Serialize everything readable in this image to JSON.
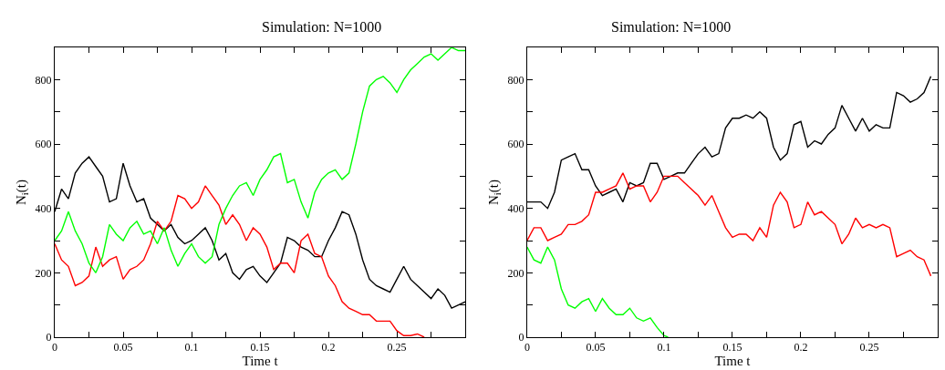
{
  "chart_data": [
    {
      "type": "line",
      "title": "Simulation: N=1000",
      "xlabel": "Time t",
      "ylabel": "N$_{i}$(t)",
      "xlim": [
        0,
        0.3
      ],
      "ylim": [
        0,
        900
      ],
      "xticks": [
        0,
        {
          "value": 0.025,
          "label": null
        },
        0.05,
        {
          "value": 0.075,
          "label": null
        },
        0.1,
        {
          "value": 0.125,
          "label": null
        },
        0.15,
        {
          "value": 0.175,
          "label": null
        },
        0.2,
        {
          "value": 0.225,
          "label": null
        },
        0.25,
        {
          "value": 0.275,
          "label": null
        }
      ],
      "yticks": [
        0,
        {
          "value": 100,
          "label": null
        },
        200,
        {
          "value": 300,
          "label": null
        },
        400,
        {
          "value": 500,
          "label": null
        },
        600,
        {
          "value": 700,
          "label": null
        },
        800
      ],
      "marker": "none",
      "line_style": "solid",
      "x": [
        0,
        0.005,
        0.01,
        0.015,
        0.02,
        0.025,
        0.03,
        0.035,
        0.04,
        0.045,
        0.05,
        0.055,
        0.06,
        0.065,
        0.07,
        0.075,
        0.08,
        0.085,
        0.09,
        0.095,
        0.1,
        0.105,
        0.11,
        0.115,
        0.12,
        0.125,
        0.13,
        0.135,
        0.14,
        0.145,
        0.15,
        0.155,
        0.16,
        0.165,
        0.17,
        0.175,
        0.18,
        0.185,
        0.19,
        0.195,
        0.2,
        0.205,
        0.21,
        0.215,
        0.22,
        0.225,
        0.23,
        0.235,
        0.24,
        0.245,
        0.25,
        0.255,
        0.26,
        0.265,
        0.27,
        0.275,
        0.28,
        0.285,
        0.29,
        0.295,
        0.3
      ],
      "series": [
        {
          "color": "#000000",
          "values": [
            390,
            460,
            430,
            510,
            540,
            560,
            530,
            500,
            420,
            430,
            540,
            470,
            420,
            430,
            370,
            350,
            330,
            350,
            310,
            290,
            300,
            320,
            340,
            300,
            240,
            260,
            200,
            180,
            210,
            220,
            190,
            170,
            200,
            230,
            310,
            300,
            280,
            270,
            250,
            250,
            300,
            340,
            390,
            380,
            320,
            240,
            180,
            160,
            150,
            140,
            180,
            220,
            180,
            160,
            140,
            120,
            150,
            130,
            90,
            100,
            110
          ]
        },
        {
          "color": "#ff0000",
          "x": [
            0,
            0.005,
            0.01,
            0.015,
            0.02,
            0.025,
            0.03,
            0.035,
            0.04,
            0.045,
            0.05,
            0.055,
            0.06,
            0.065,
            0.07,
            0.075,
            0.08,
            0.085,
            0.09,
            0.095,
            0.1,
            0.105,
            0.11,
            0.115,
            0.12,
            0.125,
            0.13,
            0.135,
            0.14,
            0.145,
            0.15,
            0.155,
            0.16,
            0.165,
            0.17,
            0.175,
            0.18,
            0.185,
            0.19,
            0.195,
            0.2,
            0.205,
            0.21,
            0.215,
            0.22,
            0.225,
            0.23,
            0.235,
            0.24,
            0.245,
            0.25,
            0.255,
            0.26,
            0.265,
            0.27
          ],
          "values": [
            290,
            240,
            220,
            160,
            170,
            190,
            280,
            220,
            240,
            250,
            180,
            210,
            220,
            240,
            290,
            360,
            330,
            360,
            440,
            430,
            400,
            420,
            470,
            440,
            410,
            350,
            380,
            350,
            300,
            340,
            320,
            280,
            210,
            230,
            230,
            200,
            300,
            320,
            260,
            250,
            190,
            160,
            110,
            90,
            80,
            70,
            70,
            50,
            50,
            50,
            20,
            5,
            5,
            10,
            0
          ]
        },
        {
          "color": "#00ff00",
          "values": [
            300,
            330,
            390,
            330,
            290,
            230,
            200,
            250,
            350,
            320,
            300,
            340,
            360,
            320,
            330,
            290,
            340,
            270,
            220,
            260,
            290,
            250,
            230,
            250,
            350,
            400,
            440,
            470,
            480,
            440,
            490,
            520,
            560,
            570,
            480,
            490,
            420,
            370,
            450,
            490,
            510,
            520,
            490,
            510,
            600,
            700,
            780,
            800,
            810,
            790,
            760,
            800,
            830,
            850,
            870,
            880,
            860,
            880,
            900,
            890,
            890
          ]
        }
      ]
    },
    {
      "type": "line",
      "title": "Simulation: N=1000",
      "xlabel": "Time t",
      "ylabel": "N$_{i}$(t)",
      "xlim": [
        0,
        0.3
      ],
      "ylim": [
        0,
        900
      ],
      "xticks": [
        0,
        {
          "value": 0.025,
          "label": null
        },
        0.05,
        {
          "value": 0.075,
          "label": null
        },
        0.1,
        {
          "value": 0.125,
          "label": null
        },
        0.15,
        {
          "value": 0.175,
          "label": null
        },
        0.2,
        {
          "value": 0.225,
          "label": null
        },
        0.25,
        {
          "value": 0.275,
          "label": null
        }
      ],
      "yticks": [
        0,
        {
          "value": 100,
          "label": null
        },
        200,
        {
          "value": 300,
          "label": null
        },
        400,
        {
          "value": 500,
          "label": null
        },
        600,
        {
          "value": 700,
          "label": null
        },
        800
      ],
      "marker": "none",
      "line_style": "solid",
      "x": [
        0,
        0.005,
        0.01,
        0.015,
        0.02,
        0.025,
        0.03,
        0.035,
        0.04,
        0.045,
        0.05,
        0.055,
        0.06,
        0.065,
        0.07,
        0.075,
        0.08,
        0.085,
        0.09,
        0.095,
        0.1,
        0.105,
        0.11,
        0.115,
        0.12,
        0.125,
        0.13,
        0.135,
        0.14,
        0.145,
        0.15,
        0.155,
        0.16,
        0.165,
        0.17,
        0.175,
        0.18,
        0.185,
        0.19,
        0.195,
        0.2,
        0.205,
        0.21,
        0.215,
        0.22,
        0.225,
        0.23,
        0.235,
        0.24,
        0.245,
        0.25,
        0.255,
        0.26,
        0.265,
        0.27,
        0.275,
        0.28,
        0.285,
        0.29,
        0.295
      ],
      "series": [
        {
          "color": "#000000",
          "values": [
            420,
            420,
            420,
            400,
            450,
            550,
            560,
            570,
            520,
            520,
            470,
            440,
            450,
            460,
            420,
            480,
            470,
            480,
            540,
            540,
            490,
            500,
            510,
            510,
            540,
            570,
            590,
            560,
            570,
            650,
            680,
            680,
            690,
            680,
            700,
            680,
            590,
            550,
            570,
            660,
            670,
            590,
            610,
            600,
            630,
            650,
            720,
            680,
            640,
            680,
            640,
            660,
            650,
            650,
            760,
            750,
            730,
            740,
            760,
            810
          ]
        },
        {
          "color": "#ff0000",
          "values": [
            300,
            340,
            340,
            300,
            310,
            320,
            350,
            350,
            360,
            380,
            450,
            450,
            460,
            470,
            510,
            460,
            470,
            470,
            420,
            450,
            500,
            500,
            500,
            480,
            460,
            440,
            410,
            440,
            390,
            340,
            310,
            320,
            320,
            300,
            340,
            310,
            410,
            450,
            420,
            340,
            350,
            420,
            380,
            390,
            370,
            350,
            290,
            320,
            370,
            340,
            350,
            340,
            350,
            340,
            250,
            260,
            270,
            250,
            240,
            190
          ]
        },
        {
          "color": "#00ff00",
          "x": [
            0,
            0.005,
            0.01,
            0.015,
            0.02,
            0.025,
            0.03,
            0.035,
            0.04,
            0.045,
            0.05,
            0.055,
            0.06,
            0.065,
            0.07,
            0.075,
            0.08,
            0.085,
            0.09,
            0.095,
            0.1,
            0.103
          ],
          "values": [
            280,
            240,
            230,
            280,
            240,
            150,
            100,
            90,
            110,
            120,
            80,
            120,
            90,
            70,
            70,
            90,
            60,
            50,
            60,
            30,
            5,
            0
          ]
        }
      ]
    }
  ]
}
